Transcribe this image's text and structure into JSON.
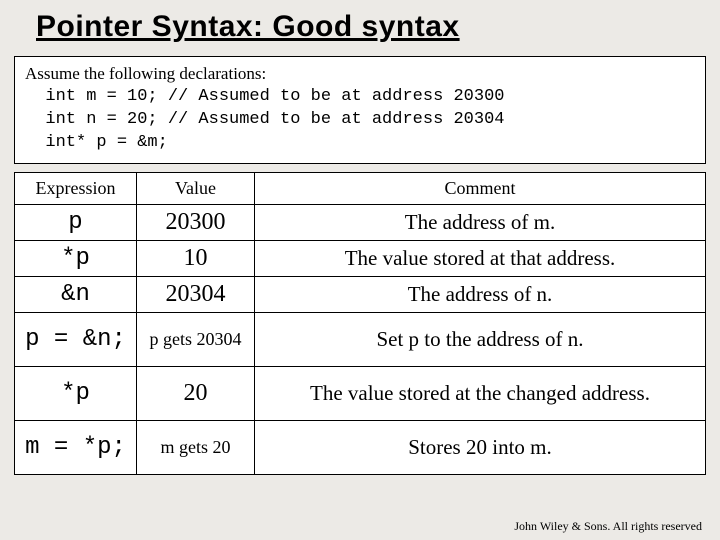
{
  "title": "Pointer Syntax: Good syntax",
  "declarations": {
    "lead": "Assume the following declarations:",
    "lines": [
      "  int m = 10; // Assumed to be at address 20300",
      "  int n = 20; // Assumed to be at address 20304",
      "  int* p = &m;"
    ]
  },
  "table": {
    "columns": [
      "Expression",
      "Value",
      "Comment"
    ],
    "rows": [
      {
        "expr": "p",
        "value": "20300",
        "value_style": "big",
        "comment": "The address of m."
      },
      {
        "expr": "*p",
        "value": "10",
        "value_style": "big",
        "comment": "The value stored at that address."
      },
      {
        "expr": "&n",
        "value": "20304",
        "value_style": "big",
        "comment": "The address of n."
      },
      {
        "expr": "p = &n;",
        "value": "p gets\n20304",
        "value_style": "small",
        "comment": "Set p to the address of n."
      },
      {
        "expr": "*p",
        "value": "20",
        "value_style": "big",
        "comment": "The value stored at the changed address."
      },
      {
        "expr": "m = *p;",
        "value": "m gets\n20",
        "value_style": "small",
        "comment": "Stores 20 into m."
      }
    ]
  },
  "copyright": "John Wiley & Sons. All\nrights reserved"
}
